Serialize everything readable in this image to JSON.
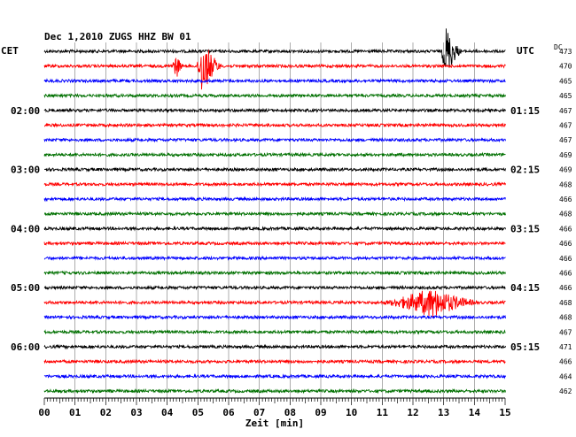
{
  "chart_data": {
    "type": "line",
    "title": "Dec 1,2010   ZUGS HHZ BW 01",
    "left_timezone": "CET",
    "right_timezone": "UTC",
    "dc_header": "DC",
    "xlabel": "Zeit [min]",
    "x_ticks": [
      "00",
      "01",
      "02",
      "03",
      "04",
      "05",
      "06",
      "07",
      "08",
      "09",
      "10",
      "11",
      "12",
      "13",
      "14",
      "15"
    ],
    "xlim": [
      0,
      15
    ],
    "trace_minutes": 15,
    "trace_count": 24,
    "trace_colors": [
      "#000000",
      "#ff0000",
      "#0000ff",
      "#007000"
    ],
    "left_hour_labels": [
      {
        "trace": 4,
        "label": "02:00"
      },
      {
        "trace": 8,
        "label": "03:00"
      },
      {
        "trace": 12,
        "label": "04:00"
      },
      {
        "trace": 16,
        "label": "05:00"
      },
      {
        "trace": 20,
        "label": "06:00"
      }
    ],
    "right_hour_labels": [
      {
        "trace": 4,
        "label": "01:15"
      },
      {
        "trace": 8,
        "label": "02:15"
      },
      {
        "trace": 12,
        "label": "03:15"
      },
      {
        "trace": 16,
        "label": "04:15"
      },
      {
        "trace": 20,
        "label": "05:15"
      }
    ],
    "dc_offsets": [
      "473",
      "470",
      "465",
      "465",
      "467",
      "467",
      "467",
      "469",
      "469",
      "468",
      "466",
      "468",
      "466",
      "466",
      "466",
      "466",
      "466",
      "468",
      "468",
      "467",
      "471",
      "466",
      "464",
      "462"
    ],
    "events": [
      {
        "trace": 1,
        "start_min": 4.1,
        "end_min": 4.5,
        "peak_min": 4.3,
        "relative_amplitude": 5
      },
      {
        "trace": 1,
        "start_min": 4.95,
        "end_min": 5.8,
        "peak_min": 5.1,
        "relative_amplitude": 12
      },
      {
        "trace": 0,
        "start_min": 12.9,
        "end_min": 13.6,
        "peak_min": 13.05,
        "relative_amplitude": 11
      },
      {
        "trace": 17,
        "start_min": 10.9,
        "end_min": 14.2,
        "peak_min": 12.6,
        "relative_amplitude": 6
      }
    ]
  }
}
